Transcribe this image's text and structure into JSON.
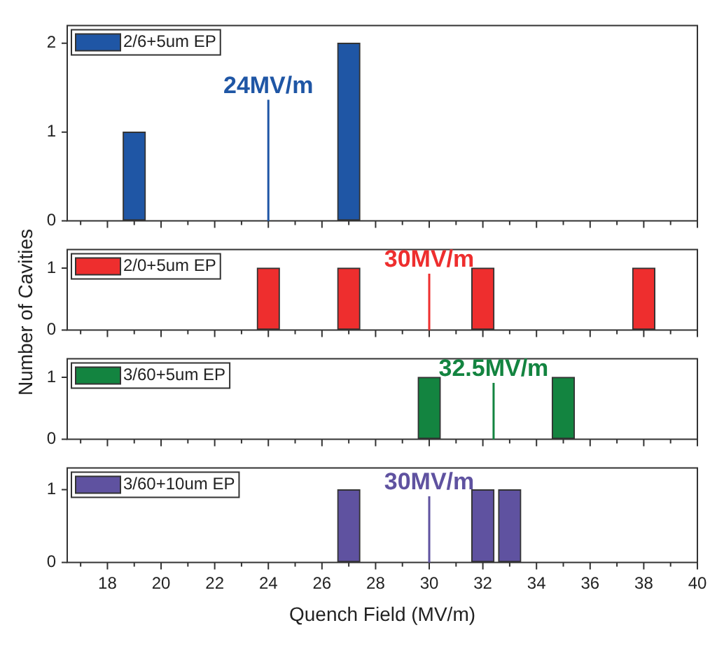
{
  "chart_data": [
    {
      "type": "bar",
      "ylabel": "Number of Cavities",
      "x": [
        19,
        27
      ],
      "series": [
        {
          "name": "2/6+5um EP",
          "color": "#1f56a5",
          "values": [
            1,
            2
          ]
        }
      ],
      "xlim": [
        16.5,
        40
      ],
      "xticks": [
        {
          "value": 17,
          "label": null
        },
        18,
        {
          "value": 19,
          "label": null
        },
        20,
        {
          "value": 21,
          "label": null
        },
        22,
        {
          "value": 23,
          "label": null
        },
        24,
        {
          "value": 25,
          "label": null
        },
        26,
        {
          "value": 27,
          "label": null
        },
        28,
        {
          "value": 29,
          "label": null
        },
        30,
        {
          "value": 31,
          "label": null
        },
        32,
        {
          "value": 33,
          "label": null
        },
        34,
        {
          "value": 35,
          "label": null
        },
        36,
        {
          "value": 37,
          "label": null
        },
        38,
        {
          "value": 39,
          "label": null
        },
        40
      ],
      "ylim": [
        0,
        2.2
      ],
      "yticks": [
        0,
        1,
        2
      ],
      "tick_labels": "y",
      "legend": "top left",
      "ref_lines": [
        {
          "axis": "x",
          "value": 24,
          "label": "24MV/m",
          "color": "#1f56a5"
        }
      ]
    },
    {
      "type": "bar",
      "x": [
        24,
        27,
        32,
        38
      ],
      "series": [
        {
          "name": "2/0+5um EP",
          "color": "#ee2e2e",
          "values": [
            1,
            1,
            1,
            1
          ]
        }
      ],
      "xlim": [
        16.5,
        40
      ],
      "xticks": [
        {
          "value": 17,
          "label": null
        },
        18,
        {
          "value": 19,
          "label": null
        },
        20,
        {
          "value": 21,
          "label": null
        },
        22,
        {
          "value": 23,
          "label": null
        },
        24,
        {
          "value": 25,
          "label": null
        },
        26,
        {
          "value": 27,
          "label": null
        },
        28,
        {
          "value": 29,
          "label": null
        },
        30,
        {
          "value": 31,
          "label": null
        },
        32,
        {
          "value": 33,
          "label": null
        },
        34,
        {
          "value": 35,
          "label": null
        },
        36,
        {
          "value": 37,
          "label": null
        },
        38,
        {
          "value": 39,
          "label": null
        },
        40
      ],
      "ylim": [
        0,
        1.3
      ],
      "yticks": [
        0,
        1
      ],
      "tick_labels": "y",
      "legend": "top left",
      "ref_lines": [
        {
          "axis": "x",
          "value": 30,
          "label": "30MV/m",
          "color": "#ee2e2e"
        }
      ]
    },
    {
      "type": "bar",
      "x": [
        30,
        35
      ],
      "series": [
        {
          "name": "3/60+5um EP",
          "color": "#138440",
          "values": [
            1,
            1
          ]
        }
      ],
      "xlim": [
        16.5,
        40
      ],
      "xticks": [
        {
          "value": 17,
          "label": null
        },
        18,
        {
          "value": 19,
          "label": null
        },
        20,
        {
          "value": 21,
          "label": null
        },
        22,
        {
          "value": 23,
          "label": null
        },
        24,
        {
          "value": 25,
          "label": null
        },
        26,
        {
          "value": 27,
          "label": null
        },
        28,
        {
          "value": 29,
          "label": null
        },
        30,
        {
          "value": 31,
          "label": null
        },
        32,
        {
          "value": 33,
          "label": null
        },
        34,
        {
          "value": 35,
          "label": null
        },
        36,
        {
          "value": 37,
          "label": null
        },
        38,
        {
          "value": 39,
          "label": null
        },
        40
      ],
      "ylim": [
        0,
        1.3
      ],
      "yticks": [
        0,
        1
      ],
      "tick_labels": "y",
      "legend": "top left",
      "ref_lines": [
        {
          "axis": "x",
          "value": 32.4,
          "label": "32.5MV/m",
          "color": "#138440"
        }
      ]
    },
    {
      "type": "bar",
      "xlabel": "Quench Field (MV/m)",
      "x": [
        27,
        32,
        33
      ],
      "series": [
        {
          "name": "3/60+10um EP",
          "color": "#5f52a0",
          "values": [
            1,
            1,
            1
          ]
        }
      ],
      "xlim": [
        16.5,
        40
      ],
      "xticks": [
        {
          "value": 17,
          "label": null
        },
        18,
        {
          "value": 19,
          "label": null
        },
        20,
        {
          "value": 21,
          "label": null
        },
        22,
        {
          "value": 23,
          "label": null
        },
        24,
        {
          "value": 25,
          "label": null
        },
        26,
        {
          "value": 27,
          "label": null
        },
        28,
        {
          "value": 29,
          "label": null
        },
        30,
        {
          "value": 31,
          "label": null
        },
        32,
        {
          "value": 33,
          "label": null
        },
        34,
        {
          "value": 35,
          "label": null
        },
        36,
        {
          "value": 37,
          "label": null
        },
        38,
        {
          "value": 39,
          "label": null
        },
        40
      ],
      "ylim": [
        0,
        1.3
      ],
      "yticks": [
        0,
        1
      ],
      "legend": "top left",
      "ref_lines": [
        {
          "axis": "x",
          "value": 30,
          "label": "30MV/m",
          "color": "#5f52a0"
        }
      ]
    }
  ]
}
